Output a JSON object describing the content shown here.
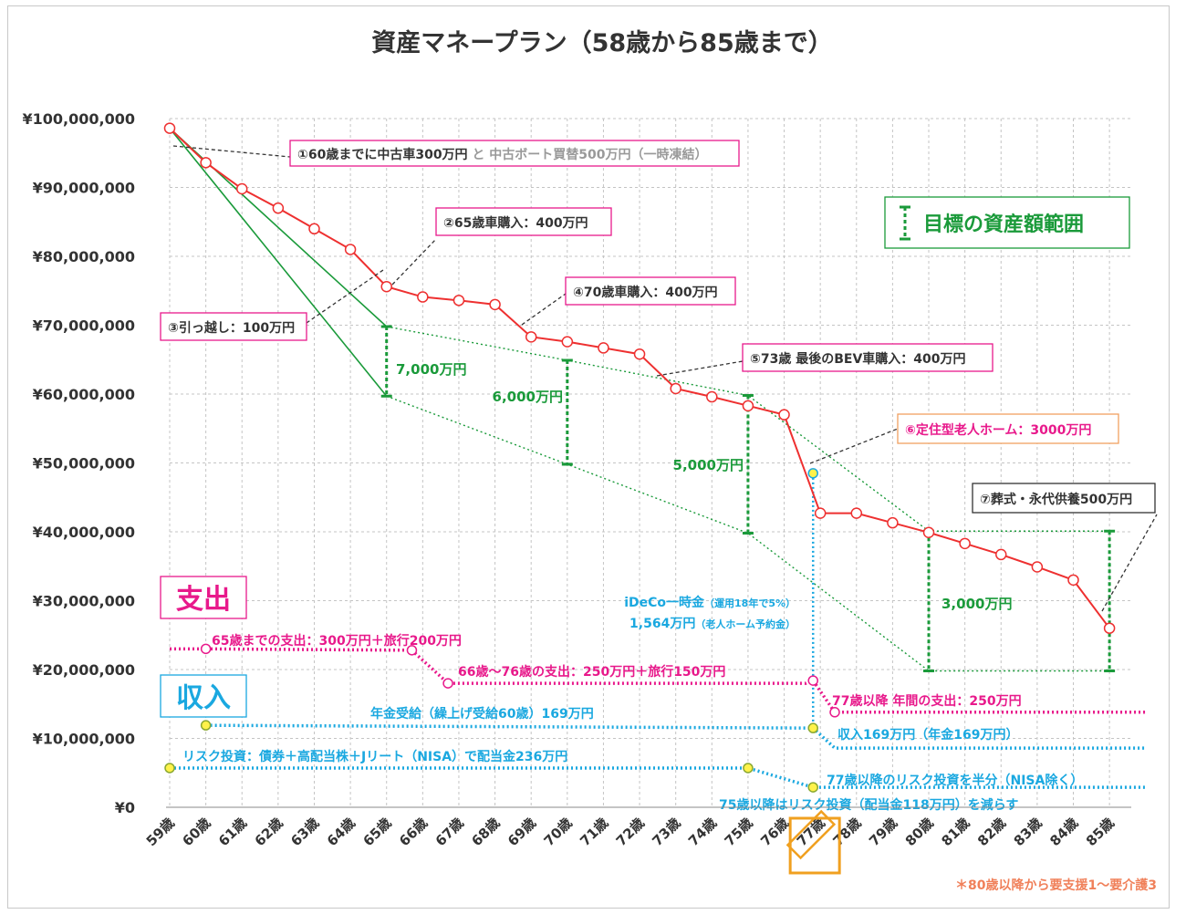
{
  "chart_data": {
    "type": "line",
    "title": "資産マネープラン（58歳から85歳まで）",
    "y_tick_labels": [
      "¥0",
      "¥10,000,000",
      "¥20,000,000",
      "¥30,000,000",
      "¥40,000,000",
      "¥50,000,000",
      "¥60,000,000",
      "¥70,000,000",
      "¥80,000,000",
      "¥90,000,000",
      "¥100,000,000"
    ],
    "ylim": [
      0,
      100000000
    ],
    "grid": true,
    "categories": [
      "59歳",
      "60歳",
      "61歳",
      "62歳",
      "63歳",
      "64歳",
      "65歳",
      "66歳",
      "67歳",
      "68歳",
      "69歳",
      "70歳",
      "71歳",
      "72歳",
      "73歳",
      "74歳",
      "75歳",
      "76歳",
      "77歳",
      "78歳",
      "79歳",
      "80歳",
      "81歳",
      "82歳",
      "83歳",
      "84歳",
      "85歳"
    ],
    "highlight_category": "77歳",
    "asset": {
      "color": "#ee3030",
      "values": [
        98600000,
        93600000,
        89800000,
        87000000,
        84000000,
        81000000,
        75600000,
        74100000,
        73600000,
        73000000,
        68300000,
        67600000,
        66700000,
        65800000,
        60800000,
        59600000,
        58300000,
        57000000,
        42700000,
        42700000,
        41300000,
        39900000,
        38300000,
        36700000,
        34900000,
        33000000,
        26000000
      ]
    },
    "target_upper": {
      "color": "#1a9a3a",
      "points": [
        [
          0,
          98600000
        ],
        [
          6,
          69800000
        ],
        [
          11,
          64900000
        ],
        [
          16,
          59800000
        ],
        [
          21,
          40100000
        ],
        [
          26,
          40100000
        ]
      ]
    },
    "target_lower": {
      "color": "#1a9a3a",
      "points": [
        [
          0,
          98600000
        ],
        [
          6,
          59700000
        ],
        [
          11,
          49800000
        ],
        [
          16,
          39800000
        ],
        [
          21,
          19800000
        ],
        [
          26,
          19800000
        ]
      ]
    },
    "target_ranges": [
      {
        "x": 6,
        "high": 69800000,
        "low": 59700000,
        "label": "7,000万円"
      },
      {
        "x": 11,
        "high": 64900000,
        "low": 49800000,
        "label": "6,000万円"
      },
      {
        "x": 16,
        "high": 59800000,
        "low": 39800000,
        "label": "5,000万円"
      },
      {
        "x": 21,
        "high": 40100000,
        "low": 19800000,
        "label": "3,000万円"
      },
      {
        "x": 26,
        "high": 40100000,
        "low": 19800000,
        "label": ""
      }
    ],
    "expense": {
      "color": "#e8198b",
      "points": [
        [
          0,
          23000000
        ],
        [
          1,
          23000000
        ],
        [
          6.7,
          22800000
        ],
        [
          7.7,
          18000000
        ],
        [
          17.6,
          18000000
        ],
        [
          17.8,
          18400000
        ],
        [
          18.4,
          13800000
        ],
        [
          27,
          13800000
        ]
      ],
      "markers": [
        [
          1,
          23000000
        ],
        [
          6.7,
          22800000
        ],
        [
          7.7,
          18000000
        ],
        [
          17.8,
          18400000
        ],
        [
          18.4,
          13800000
        ]
      ]
    },
    "pension": {
      "color": "#1aa8e0",
      "points": [
        [
          1,
          11900000
        ],
        [
          17.8,
          11500000
        ],
        [
          18.4,
          8600000
        ],
        [
          27,
          8600000
        ]
      ],
      "markers": [
        [
          1,
          11900000
        ],
        [
          17.8,
          11500000
        ]
      ]
    },
    "dividend": {
      "color": "#1aa8e0",
      "points": [
        [
          0,
          5700000
        ],
        [
          16,
          5700000
        ],
        [
          17.8,
          2900000
        ],
        [
          27,
          2900000
        ]
      ],
      "markers": [
        [
          0,
          5700000
        ],
        [
          16,
          5700000
        ],
        [
          17.8,
          2900000
        ]
      ]
    },
    "ideco": {
      "color": "#1aa8e0",
      "x": 17.8,
      "from": 48500000,
      "to": 11500000
    },
    "events": [
      {
        "num": "①",
        "text": "60歳までに中古車300万円",
        "extra": " と 中古ボート買替500万円（一時凍結）"
      },
      {
        "num": "②",
        "text": "65歳車購入：400万円"
      },
      {
        "num": "③",
        "text": "引っ越し：100万円"
      },
      {
        "num": "④",
        "text": "70歳車購入：400万円"
      },
      {
        "num": "⑤",
        "text": "73歳 最後のBEV車購入：400万円"
      },
      {
        "num": "⑥",
        "text": "定住型老人ホーム：3000万円"
      },
      {
        "num": "⑦",
        "text": "葬式・永代供養500万円"
      }
    ],
    "legend_label": "目標の資産額範囲",
    "expense_heading": "支出",
    "income_heading": "収入",
    "labels": {
      "expense_to65": "65歳までの支出：300万円＋旅行200万円",
      "expense_66_76": "66歳～76歳の支出：250万円＋旅行150万円",
      "expense_77": "77歳以降 年間の支出：250万円",
      "pension": "年金受給（繰上げ受給60歳）169万円",
      "income_77": "収入169万円（年金169万円）",
      "risk": "リスク投資：債券＋高配当株＋Jリート（NISA）で配当金236万円",
      "risk_77": "77歳以降のリスク投資を半分（NISA除く）",
      "risk_75": "75歳以降はリスク投資（配当金118万円）を減らす",
      "ideco_line1_main": "iDeCo一時金",
      "ideco_line1_sub": "（運用18年で5%）",
      "ideco_line2_main": "1,564万円",
      "ideco_line2_sub": "（老人ホーム予約金）",
      "care_note": "＊80歳以降から要支援1～要介護3"
    }
  }
}
